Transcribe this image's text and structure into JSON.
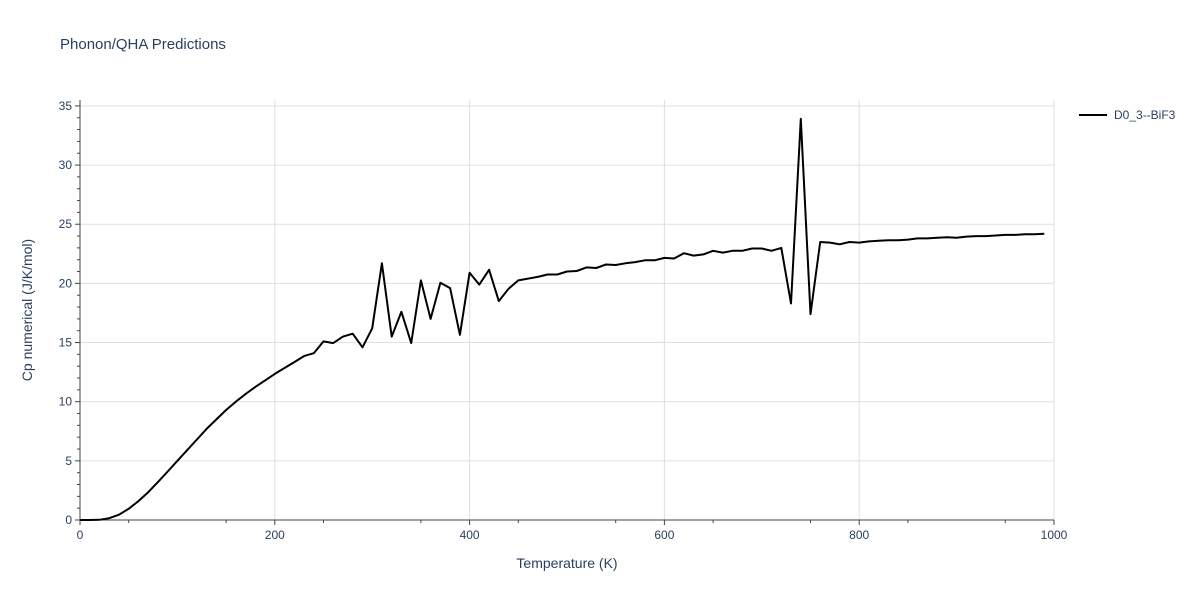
{
  "chart_data": {
    "type": "line",
    "title": "Phonon/QHA Predictions",
    "xlabel": "Temperature (K)",
    "ylabel": "Cp numerical (J/K/mol)",
    "xlim": [
      0,
      1000
    ],
    "ylim": [
      0,
      35.5
    ],
    "xticks": [
      0,
      200,
      400,
      600,
      800,
      1000
    ],
    "yticks": [
      0,
      5,
      10,
      15,
      20,
      25,
      30,
      35
    ],
    "grid": true,
    "legend_position": "top-right",
    "series": [
      {
        "name": "D0_3--BiF3",
        "color": "#000000",
        "x": [
          0,
          10,
          20,
          30,
          40,
          50,
          60,
          70,
          80,
          90,
          100,
          110,
          120,
          130,
          140,
          150,
          160,
          170,
          180,
          190,
          200,
          210,
          220,
          230,
          240,
          250,
          260,
          270,
          280,
          290,
          300,
          310,
          320,
          330,
          340,
          350,
          360,
          370,
          380,
          390,
          400,
          410,
          420,
          430,
          440,
          450,
          460,
          470,
          480,
          490,
          500,
          510,
          520,
          530,
          540,
          550,
          560,
          570,
          580,
          590,
          600,
          610,
          620,
          630,
          640,
          650,
          660,
          670,
          680,
          690,
          700,
          710,
          720,
          730,
          740,
          750,
          760,
          770,
          780,
          790,
          800,
          810,
          820,
          830,
          840,
          850,
          860,
          870,
          880,
          890,
          900,
          910,
          920,
          930,
          940,
          950,
          960,
          970,
          980,
          990
        ],
        "y": [
          0,
          0,
          0.02,
          0.15,
          0.45,
          0.95,
          1.6,
          2.35,
          3.2,
          4.1,
          5.0,
          5.9,
          6.8,
          7.7,
          8.5,
          9.3,
          10.0,
          10.65,
          11.25,
          11.8,
          12.35,
          12.85,
          13.35,
          13.85,
          14.1,
          15.1,
          14.95,
          15.5,
          15.75,
          14.6,
          16.2,
          21.7,
          15.5,
          17.6,
          14.95,
          20.25,
          17.0,
          20.05,
          19.6,
          15.65,
          20.9,
          19.9,
          21.15,
          18.5,
          19.55,
          20.25,
          20.4,
          20.55,
          20.75,
          20.75,
          21.0,
          21.05,
          21.35,
          21.3,
          21.6,
          21.55,
          21.7,
          21.8,
          21.95,
          21.95,
          22.15,
          22.1,
          22.55,
          22.35,
          22.45,
          22.75,
          22.6,
          22.75,
          22.75,
          22.95,
          22.95,
          22.75,
          23.0,
          18.3,
          33.9,
          17.4,
          23.5,
          23.45,
          23.3,
          23.5,
          23.45,
          23.55,
          23.6,
          23.65,
          23.65,
          23.7,
          23.8,
          23.8,
          23.85,
          23.9,
          23.85,
          23.95,
          24.0,
          24.0,
          24.05,
          24.1,
          24.1,
          24.15,
          24.15,
          24.2
        ]
      }
    ]
  }
}
